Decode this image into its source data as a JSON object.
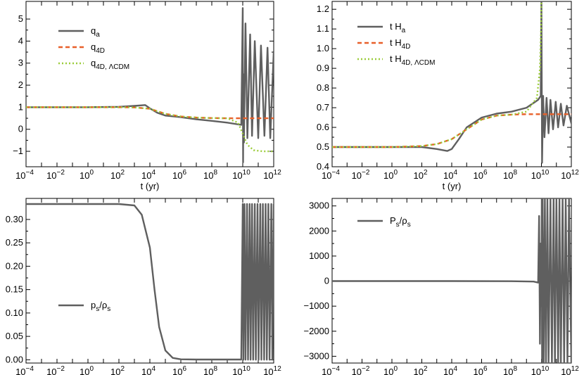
{
  "chart_data": [
    {
      "type": "line",
      "panel": "top-left",
      "xscale": "log",
      "xlim": [
        0.0001,
        1000000000000
      ],
      "ylim": [
        -1.7,
        5.8
      ],
      "xlabel": "t (yr)",
      "xticks": [
        {
          "v": 0.0001,
          "base": "10",
          "exp": "−4"
        },
        {
          "v": 0.01,
          "base": "10",
          "exp": "−2"
        },
        {
          "v": 1,
          "base": "10",
          "exp": "0"
        },
        {
          "v": 100,
          "base": "10",
          "exp": "2"
        },
        {
          "v": 10000,
          "base": "10",
          "exp": "4"
        },
        {
          "v": 1000000,
          "base": "10",
          "exp": "6"
        },
        {
          "v": 100000000,
          "base": "10",
          "exp": "8"
        },
        {
          "v": 10000000000,
          "base": "10",
          "exp": "10"
        },
        {
          "v": 1000000000000,
          "base": "10",
          "exp": "12"
        }
      ],
      "yticks": [
        {
          "v": -1,
          "label": "−1"
        },
        {
          "v": 0,
          "label": "0"
        },
        {
          "v": 1,
          "label": "1"
        },
        {
          "v": 2,
          "label": "2"
        },
        {
          "v": 3,
          "label": "3"
        },
        {
          "v": 4,
          "label": "4"
        },
        {
          "v": 5,
          "label": "5"
        }
      ],
      "legend_position": "top-left",
      "series": [
        {
          "name": "q",
          "sub": "a",
          "color": "#5f5f5f",
          "dash": "none",
          "x": [
            0.0001,
            1,
            100,
            1000,
            5000,
            10000,
            30000,
            100000,
            1000000,
            10000000,
            100000000,
            1000000000,
            8000000000,
            10000000000,
            10500000000,
            11000000000,
            12000000000,
            15000000000,
            20000000000,
            30000000000,
            40000000000,
            60000000000,
            100000000000,
            150000000000,
            250000000000,
            400000000000,
            600000000000,
            1000000000000
          ],
          "y": [
            1.0,
            1.0,
            1.02,
            1.06,
            1.1,
            0.95,
            0.75,
            0.62,
            0.55,
            0.45,
            0.38,
            0.3,
            0.2,
            5.5,
            -1.5,
            2.5,
            -0.6,
            4.8,
            -0.4,
            4.3,
            -0.3,
            4.0,
            -0.4,
            3.8,
            -0.3,
            3.7,
            -0.4,
            3.5
          ]
        },
        {
          "name": "q",
          "sub": "4D",
          "color": "#e8602a",
          "dash": "6,4",
          "x": [
            0.0001,
            1,
            100,
            1000,
            10000,
            30000,
            100000,
            1000000,
            10000000,
            100000000,
            1000000000,
            10000000000,
            100000000000,
            1000000000000
          ],
          "y": [
            1.0,
            1.0,
            1.0,
            0.99,
            0.93,
            0.82,
            0.7,
            0.58,
            0.53,
            0.51,
            0.5,
            0.5,
            0.5,
            0.5
          ]
        },
        {
          "name": "q",
          "sub": "4D, ΛCDM",
          "color": "#9bcc3a",
          "dash": "2,3",
          "x": [
            0.0001,
            1,
            100,
            1000,
            10000,
            30000,
            100000,
            1000000,
            10000000,
            100000000,
            1000000000,
            5000000000,
            10000000000,
            20000000000,
            50000000000,
            200000000000,
            1000000000000
          ],
          "y": [
            1.0,
            1.0,
            1.0,
            0.99,
            0.93,
            0.82,
            0.7,
            0.58,
            0.53,
            0.51,
            0.5,
            0.3,
            -0.2,
            -0.7,
            -0.95,
            -1.0,
            -1.0
          ]
        }
      ]
    },
    {
      "type": "line",
      "panel": "top-right",
      "xscale": "log",
      "xlim": [
        0.0001,
        1000000000000
      ],
      "ylim": [
        0.4,
        1.24
      ],
      "xlabel": "t (yr)",
      "xticks": [
        {
          "v": 0.0001,
          "base": "10",
          "exp": "−4"
        },
        {
          "v": 0.01,
          "base": "10",
          "exp": "−2"
        },
        {
          "v": 1,
          "base": "10",
          "exp": "0"
        },
        {
          "v": 100,
          "base": "10",
          "exp": "2"
        },
        {
          "v": 10000,
          "base": "10",
          "exp": "4"
        },
        {
          "v": 1000000,
          "base": "10",
          "exp": "6"
        },
        {
          "v": 100000000,
          "base": "10",
          "exp": "8"
        },
        {
          "v": 10000000000,
          "base": "10",
          "exp": "10"
        },
        {
          "v": 1000000000000,
          "base": "10",
          "exp": "12"
        }
      ],
      "yticks": [
        {
          "v": 0.4,
          "label": "0.4"
        },
        {
          "v": 0.5,
          "label": "0.5"
        },
        {
          "v": 0.6,
          "label": "0.6"
        },
        {
          "v": 0.7,
          "label": "0.7"
        },
        {
          "v": 0.8,
          "label": "0.8"
        },
        {
          "v": 0.9,
          "label": "0.9"
        },
        {
          "v": 1.0,
          "label": "1.0"
        },
        {
          "v": 1.1,
          "label": "1.1"
        },
        {
          "v": 1.2,
          "label": "1.2"
        }
      ],
      "legend_position": "top-left",
      "series": [
        {
          "name": "t H",
          "sub": "a",
          "color": "#5f5f5f",
          "dash": "none",
          "x": [
            0.0001,
            1,
            100,
            1000,
            5000,
            10000,
            30000,
            100000,
            1000000,
            10000000,
            100000000,
            1000000000,
            6000000000,
            9000000000,
            10000000000,
            11000000000,
            13000000000,
            16000000000,
            22000000000,
            30000000000,
            40000000000,
            60000000000,
            90000000000,
            130000000000,
            200000000000,
            300000000000,
            500000000000,
            1000000000000
          ],
          "y": [
            0.5,
            0.5,
            0.5,
            0.49,
            0.48,
            0.49,
            0.54,
            0.6,
            0.65,
            0.67,
            0.68,
            0.7,
            0.74,
            0.76,
            1.25,
            0.42,
            0.76,
            0.55,
            0.75,
            0.57,
            0.74,
            0.59,
            0.73,
            0.6,
            0.72,
            0.61,
            0.71,
            0.62
          ]
        },
        {
          "name": "t H",
          "sub": "4D",
          "color": "#e8602a",
          "dash": "6,4",
          "x": [
            0.0001,
            1,
            100,
            1000,
            10000,
            100000,
            1000000,
            10000000,
            100000000,
            1000000000,
            10000000000,
            100000000000,
            1000000000000
          ],
          "y": [
            0.5,
            0.5,
            0.505,
            0.515,
            0.54,
            0.59,
            0.64,
            0.66,
            0.665,
            0.667,
            0.667,
            0.667,
            0.667
          ]
        },
        {
          "name": "t H",
          "sub": "4D, ΛCDM",
          "color": "#9bcc3a",
          "dash": "2,3",
          "x": [
            0.0001,
            1,
            100,
            1000,
            10000,
            100000,
            1000000,
            10000000,
            100000000,
            1000000000,
            5000000000,
            8000000000,
            9500000000,
            10000000000
          ],
          "y": [
            0.5,
            0.5,
            0.505,
            0.515,
            0.54,
            0.59,
            0.64,
            0.66,
            0.665,
            0.68,
            0.75,
            0.9,
            1.1,
            1.25
          ]
        }
      ]
    },
    {
      "type": "line",
      "panel": "bottom-left",
      "xscale": "log",
      "xlim": [
        0.0001,
        1000000000000
      ],
      "ylim": [
        -0.007,
        0.345
      ],
      "xlabel": "",
      "xticks": [
        {
          "v": 0.0001,
          "base": "10",
          "exp": "−4"
        },
        {
          "v": 0.01,
          "base": "10",
          "exp": "−2"
        },
        {
          "v": 1,
          "base": "10",
          "exp": "0"
        },
        {
          "v": 100,
          "base": "10",
          "exp": "2"
        },
        {
          "v": 10000,
          "base": "10",
          "exp": "4"
        },
        {
          "v": 1000000,
          "base": "10",
          "exp": "6"
        },
        {
          "v": 100000000,
          "base": "10",
          "exp": "8"
        },
        {
          "v": 10000000000,
          "base": "10",
          "exp": "10"
        },
        {
          "v": 1000000000000,
          "base": "10",
          "exp": "12"
        }
      ],
      "yticks": [
        {
          "v": 0.0,
          "label": "0.00"
        },
        {
          "v": 0.05,
          "label": "0.05"
        },
        {
          "v": 0.1,
          "label": "0.10"
        },
        {
          "v": 0.15,
          "label": "0.15"
        },
        {
          "v": 0.2,
          "label": "0.20"
        },
        {
          "v": 0.25,
          "label": "0.25"
        },
        {
          "v": 0.3,
          "label": "0.30"
        }
      ],
      "legend_position": "lower-left",
      "series": [
        {
          "name": "p",
          "sub": "s",
          "name2": "/ρ",
          "sub2": "s",
          "color": "#5f5f5f",
          "dash": "none",
          "x": [
            0.0001,
            100,
            1000,
            3000,
            10000,
            20000,
            40000,
            100000,
            300000,
            1000000,
            10000000,
            100000000,
            8000000000,
            10000000000,
            11000000000,
            13000000000,
            15000000000,
            19000000000,
            22000000000,
            28000000000,
            32000000000,
            40000000000,
            47000000000,
            60000000000,
            70000000000,
            90000000000,
            105000000000,
            135000000000,
            160000000000,
            200000000000,
            240000000000,
            300000000000,
            360000000000,
            450000000000,
            540000000000,
            700000000000,
            820000000000,
            1000000000000
          ],
          "y": [
            0.333,
            0.333,
            0.33,
            0.31,
            0.24,
            0.15,
            0.07,
            0.02,
            0.004,
            0.001,
            0.0005,
            0.0005,
            0.0005,
            0.333,
            0.0,
            0.333,
            0.0,
            0.333,
            0.0,
            0.333,
            0.0,
            0.333,
            0.0,
            0.333,
            0.0,
            0.333,
            0.0,
            0.333,
            0.0,
            0.333,
            0.0,
            0.333,
            0.0,
            0.333,
            0.0,
            0.333,
            0.0,
            0.333
          ]
        }
      ]
    },
    {
      "type": "line",
      "panel": "bottom-right",
      "xscale": "log",
      "xlim": [
        0.0001,
        1000000000000
      ],
      "ylim": [
        -3270,
        3300
      ],
      "xlabel": "",
      "xticks": [
        {
          "v": 0.0001,
          "base": "10",
          "exp": "−4"
        },
        {
          "v": 0.01,
          "base": "10",
          "exp": "−2"
        },
        {
          "v": 1,
          "base": "10",
          "exp": "0"
        },
        {
          "v": 100,
          "base": "10",
          "exp": "2"
        },
        {
          "v": 10000,
          "base": "10",
          "exp": "4"
        },
        {
          "v": 1000000,
          "base": "10",
          "exp": "6"
        },
        {
          "v": 100000000,
          "base": "10",
          "exp": "8"
        },
        {
          "v": 10000000000,
          "base": "10",
          "exp": "10"
        },
        {
          "v": 1000000000000,
          "base": "10",
          "exp": "12"
        }
      ],
      "yticks": [
        {
          "v": -3000,
          "label": "−3000"
        },
        {
          "v": -2000,
          "label": "−2000"
        },
        {
          "v": -1000,
          "label": "−1000"
        },
        {
          "v": 0,
          "label": "0"
        },
        {
          "v": 1000,
          "label": "1000"
        },
        {
          "v": 2000,
          "label": "2000"
        },
        {
          "v": 3000,
          "label": "3000"
        }
      ],
      "legend_position": "top-left",
      "series": [
        {
          "name": "P",
          "sub": "s",
          "name2": "/ρ",
          "sub2": "s",
          "color": "#5f5f5f",
          "dash": "none",
          "x": [
            0.0001,
            1,
            10000,
            100000000,
            3000000000,
            6000000000,
            7000000000,
            8000000000,
            9000000000,
            9500000000,
            10000000000,
            10500000000,
            11000000000,
            12000000000,
            14000000000,
            17000000000,
            20000000000,
            25000000000,
            30000000000,
            40000000000,
            50000000000,
            65000000000,
            80000000000,
            100000000000,
            130000000000,
            160000000000,
            200000000000,
            260000000000,
            330000000000,
            420000000000,
            550000000000,
            700000000000,
            1000000000000
          ],
          "y": [
            0,
            0,
            0,
            -5,
            -20,
            -60,
            2600,
            -2500,
            1500,
            -1000,
            0,
            3300,
            -3300,
            3300,
            -3300,
            3300,
            -3300,
            3300,
            -3300,
            3300,
            -3300,
            3300,
            -3300,
            3300,
            -3300,
            3300,
            -3300,
            3300,
            -3300,
            3300,
            -3300,
            3300,
            -3300
          ]
        }
      ]
    }
  ]
}
